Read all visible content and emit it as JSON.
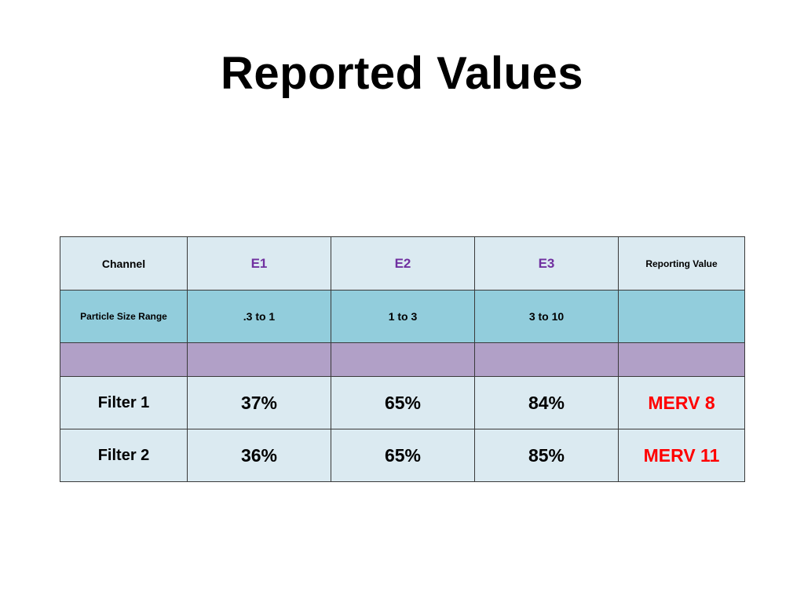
{
  "title": "Reported Values",
  "table": {
    "header": {
      "label": "Channel",
      "channels": [
        "E1",
        "E2",
        "E3"
      ],
      "reporting_label": "Reporting Value"
    },
    "particle_row": {
      "label": "Particle Size Range",
      "ranges": [
        ".3 to 1",
        "1 to 3",
        "3 to 10"
      ],
      "reporting": ""
    },
    "filters": [
      {
        "name": "Filter 1",
        "values": [
          "37%",
          "65%",
          "84%"
        ],
        "reporting": "MERV 8"
      },
      {
        "name": "Filter 2",
        "values": [
          "36%",
          "65%",
          "85%"
        ],
        "reporting": "MERV 11"
      }
    ]
  },
  "colors": {
    "light_cell": "#dbeaf1",
    "particle_row": "#92cddc",
    "spacer_row": "#b1a0c7",
    "channel_text": "#7030a0",
    "merv_text": "#ff0000"
  }
}
